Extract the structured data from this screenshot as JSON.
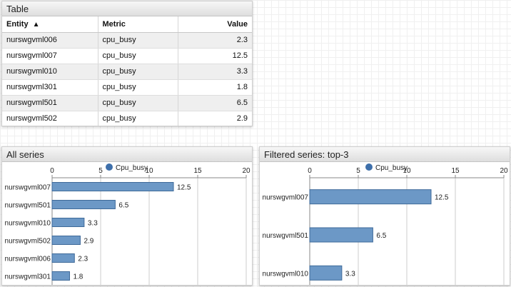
{
  "table_panel": {
    "title": "Table",
    "columns": [
      {
        "label": "Entity",
        "sort_indicator": "▲"
      },
      {
        "label": "Metric"
      },
      {
        "label": "Value"
      }
    ],
    "rows": [
      {
        "entity": "nurswgvml006",
        "metric": "cpu_busy",
        "value": "2.3"
      },
      {
        "entity": "nurswgvml007",
        "metric": "cpu_busy",
        "value": "12.5"
      },
      {
        "entity": "nurswgvml010",
        "metric": "cpu_busy",
        "value": "3.3"
      },
      {
        "entity": "nurswgvml301",
        "metric": "cpu_busy",
        "value": "1.8"
      },
      {
        "entity": "nurswgvml501",
        "metric": "cpu_busy",
        "value": "6.5"
      },
      {
        "entity": "nurswgvml502",
        "metric": "cpu_busy",
        "value": "2.9"
      }
    ]
  },
  "all_series_panel": {
    "title": "All series"
  },
  "filtered_panel": {
    "title": "Filtered series: top-3"
  },
  "colors": {
    "bar_fill": "#6c98c6",
    "bar_stroke": "#3e6a99",
    "legend_dot": "#3e6faa",
    "grid": "#cccccc"
  },
  "chart_data": [
    {
      "type": "bar",
      "orientation": "horizontal",
      "legend": "Cpu_busy",
      "legend_position": "top-center",
      "categories": [
        "nurswgvml007",
        "nurswgvml501",
        "nurswgvml010",
        "nurswgvml502",
        "nurswgvml006",
        "nurswgvml301"
      ],
      "values": [
        12.5,
        6.5,
        3.3,
        2.9,
        2.3,
        1.8
      ],
      "value_labels": [
        "12.5",
        "6.5",
        "3.3",
        "2.9",
        "2.3",
        "1.8"
      ],
      "xlim": [
        0,
        20
      ],
      "ticks": [
        0,
        5,
        10,
        15,
        20
      ],
      "tick_labels": [
        "0",
        "5",
        "10",
        "15",
        "20"
      ],
      "grid": true
    },
    {
      "type": "bar",
      "orientation": "horizontal",
      "legend": "Cpu_busy",
      "legend_position": "top-center",
      "categories": [
        "nurswgvml007",
        "nurswgvml501",
        "nurswgvml010"
      ],
      "values": [
        12.5,
        6.5,
        3.3
      ],
      "value_labels": [
        "12.5",
        "6.5",
        "3.3"
      ],
      "xlim": [
        0,
        20
      ],
      "ticks": [
        0,
        5,
        10,
        15,
        20
      ],
      "tick_labels": [
        "0",
        "5",
        "10",
        "15",
        "20"
      ],
      "grid": true
    }
  ]
}
